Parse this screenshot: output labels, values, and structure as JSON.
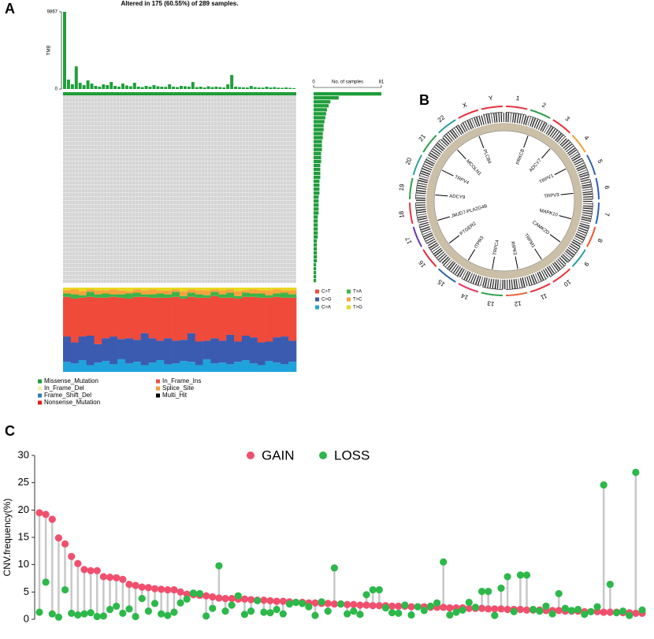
{
  "panel_labels": [
    "A",
    "B",
    "C"
  ],
  "oncoplot": {
    "title": "Altered in 175 (60.55%) of 289 samples.",
    "tmb_label": "TMB",
    "tmb_ylim": [
      0,
      9867
    ],
    "tmb_yticks": [
      0,
      9867
    ],
    "tmb_color": "#1f9e3a",
    "tmb": [
      9867,
      1200,
      600,
      2900,
      800,
      500,
      1100,
      700,
      400,
      300,
      600,
      500,
      900,
      400,
      300,
      700,
      450,
      350,
      800,
      300,
      250,
      400,
      300,
      500,
      350,
      300,
      280,
      600,
      300,
      250,
      400,
      350,
      300,
      900,
      250,
      300,
      200,
      350,
      250,
      300,
      250,
      200,
      600,
      1800,
      300,
      250,
      220,
      200,
      400,
      250,
      200,
      180,
      300,
      200,
      250,
      180,
      150,
      200,
      150,
      120
    ],
    "count_label": "No. of samples",
    "count_xlim": [
      0,
      81
    ],
    "count_xticks": [
      0,
      81
    ],
    "count_color": "#1f9e3a",
    "gene_counts": [
      81,
      30,
      20,
      18,
      16,
      15,
      14,
      13,
      12,
      12,
      11,
      11,
      10,
      10,
      10,
      9,
      9,
      9,
      8,
      8,
      8,
      8,
      7,
      7,
      7,
      7,
      6,
      6,
      6,
      6,
      6,
      5,
      5,
      5,
      5,
      5,
      5,
      4,
      4,
      4,
      4,
      4,
      4,
      3,
      3,
      3,
      3,
      3
    ],
    "variant_legend": [
      {
        "name": "Missense_Mutation",
        "color": "#1f9e3a"
      },
      {
        "name": "In_Frame_Ins",
        "color": "#e8524a"
      },
      {
        "name": "In_Frame_Del",
        "color": "#f3efb0"
      },
      {
        "name": "Splice_Site",
        "color": "#f39c34"
      },
      {
        "name": "Frame_Shift_Del",
        "color": "#2f7bbf"
      },
      {
        "name": "Multi_Hit",
        "color": "#000000"
      },
      {
        "name": "Nonsense_Mutation",
        "color": "#e31a1c"
      }
    ],
    "titv_ylim": [
      0,
      100
    ],
    "titv": [
      {
        "name": "C>T",
        "color": "#f04a3a",
        "values": [
          47,
          52,
          46,
          46,
          55,
          48,
          47,
          49,
          47,
          51,
          43,
          48,
          51,
          48,
          52,
          49,
          43,
          52,
          51,
          50,
          51,
          44,
          51,
          46,
          48,
          53,
          52,
          48,
          46,
          51
        ]
      },
      {
        "name": "C>G",
        "color": "#3a5bb0",
        "values": [
          30,
          25,
          28,
          35,
          22,
          27,
          33,
          24,
          30,
          26,
          38,
          29,
          23,
          31,
          27,
          25,
          34,
          28,
          22,
          30,
          26,
          35,
          24,
          29,
          31,
          27,
          23,
          30,
          33,
          25
        ]
      },
      {
        "name": "C>A",
        "color": "#1fa3dc",
        "values": [
          12,
          10,
          14,
          8,
          11,
          13,
          9,
          15,
          10,
          12,
          8,
          11,
          14,
          9,
          10,
          13,
          12,
          8,
          15,
          10,
          11,
          9,
          12,
          14,
          10,
          8,
          13,
          11,
          9,
          12
        ]
      },
      {
        "name": "T>A",
        "color": "#3cb44a",
        "values": [
          4,
          5,
          3,
          6,
          4,
          5,
          3,
          4,
          6,
          5,
          3,
          4,
          5,
          4,
          6,
          3,
          5,
          4,
          3,
          5,
          4,
          6,
          3,
          5,
          4,
          5,
          3,
          4,
          6,
          4
        ]
      },
      {
        "name": "T>C",
        "color": "#f7a33a",
        "values": [
          4,
          6,
          5,
          3,
          5,
          4,
          6,
          5,
          3,
          4,
          5,
          6,
          4,
          5,
          3,
          6,
          4,
          5,
          6,
          3,
          5,
          4,
          6,
          3,
          5,
          4,
          6,
          5,
          3,
          5
        ]
      },
      {
        "name": "T>G",
        "color": "#e8d81e",
        "values": [
          3,
          2,
          4,
          2,
          3,
          3,
          2,
          3,
          4,
          2,
          3,
          2,
          3,
          3,
          2,
          4,
          2,
          3,
          3,
          2,
          3,
          2,
          4,
          3,
          2,
          3,
          3,
          2,
          3,
          3
        ]
      }
    ]
  },
  "circos": {
    "chromosomes": [
      "1",
      "2",
      "3",
      "4",
      "5",
      "6",
      "7",
      "8",
      "9",
      "10",
      "11",
      "12",
      "13",
      "14",
      "15",
      "16",
      "17",
      "18",
      "19",
      "20",
      "21",
      "22",
      "X",
      "Y"
    ],
    "genes": [
      "PRKCB",
      "ADCY7",
      "TRPV1",
      "TRPV3",
      "MAPK10",
      "CAMK2D",
      "TRPM1",
      "RIPK3",
      "TRPC4",
      "ITPR3",
      "PTGER2",
      "JMJD7-PLA2G4B",
      "ADCY9",
      "TRPV4",
      "MCOLN1",
      "PLCB4"
    ]
  },
  "chart_data": {
    "type": "lollipop",
    "ylabel": "CNV.frequency(%)",
    "ylim": [
      0,
      30
    ],
    "yticks": [
      0,
      5,
      10,
      15,
      20,
      25,
      30
    ],
    "categories": [
      null,
      null,
      null,
      null,
      null,
      null,
      null,
      null,
      null,
      null,
      null,
      null,
      null,
      null,
      null,
      null,
      null,
      null,
      null,
      null,
      null,
      null,
      null,
      null,
      null,
      null,
      null,
      null,
      null,
      null,
      null,
      null,
      null,
      null,
      null,
      null,
      null,
      null,
      null,
      null,
      null,
      null,
      null,
      null,
      null,
      null,
      null,
      null,
      null,
      null,
      null,
      null,
      null,
      null,
      null,
      null,
      null,
      null,
      null,
      null,
      null,
      null,
      null,
      null,
      null,
      null,
      null,
      null,
      null,
      null,
      null,
      null,
      null,
      null,
      null,
      null,
      null,
      null,
      null,
      null,
      null,
      null,
      null,
      null,
      null,
      null,
      null,
      null,
      null,
      null,
      null,
      null,
      null,
      null,
      null
    ],
    "series": [
      {
        "name": "GAIN",
        "color": "#f0506e",
        "values": [
          19.5,
          19.2,
          18.3,
          14.9,
          13.8,
          11.5,
          10.2,
          9.1,
          8.9,
          8.9,
          7.8,
          7.7,
          7.6,
          7.3,
          6.4,
          6.2,
          5.9,
          5.8,
          5.6,
          5.5,
          5.4,
          5.4,
          5.0,
          4.6,
          4.5,
          4.4,
          4.3,
          4.1,
          3.9,
          3.8,
          3.8,
          3.7,
          3.7,
          3.6,
          3.5,
          3.5,
          3.4,
          3.3,
          3.3,
          3.2,
          3.1,
          3.1,
          3.0,
          3.0,
          2.9,
          2.9,
          2.8,
          2.8,
          2.7,
          2.7,
          2.6,
          2.6,
          2.5,
          2.5,
          2.5,
          2.4,
          2.4,
          2.4,
          2.3,
          2.3,
          2.3,
          2.2,
          2.2,
          2.2,
          2.1,
          2.1,
          2.1,
          2.0,
          2.0,
          2.0,
          1.9,
          1.9,
          1.9,
          1.8,
          1.8,
          1.8,
          1.7,
          1.7,
          1.7,
          1.6,
          1.6,
          1.6,
          1.5,
          1.5,
          1.5,
          1.4,
          1.4,
          1.4,
          1.3,
          1.3,
          1.3,
          1.2,
          1.2,
          1.1,
          1.1
        ]
      },
      {
        "name": "LOSS",
        "color": "#2db84a",
        "values": [
          1.3,
          6.8,
          1.0,
          0.4,
          5.4,
          1.1,
          0.8,
          1.0,
          1.2,
          0.5,
          0.6,
          1.8,
          2.4,
          1.1,
          1.9,
          0.5,
          3.8,
          1.5,
          2.9,
          1.0,
          0.7,
          1.3,
          3.0,
          3.7,
          4.8,
          4.7,
          0.6,
          2.0,
          9.8,
          1.5,
          2.6,
          4.3,
          0.9,
          1.5,
          3.4,
          1.3,
          1.2,
          1.8,
          1.0,
          2.8,
          3.1,
          2.9,
          2.3,
          0.7,
          3.2,
          1.5,
          9.4,
          2.8,
          1.0,
          1.5,
          0.9,
          4.5,
          5.4,
          5.4,
          2.1,
          1.2,
          1.1,
          2.6,
          0.8,
          2.3,
          1.6,
          2.4,
          3.0,
          10.5,
          0.8,
          1.3,
          1.7,
          3.1,
          2.2,
          5.1,
          5.1,
          0.7,
          5.7,
          7.8,
          1.4,
          8.1,
          8.1,
          1.8,
          1.5,
          2.4,
          1.0,
          4.7,
          2.0,
          1.6,
          1.8,
          0.9,
          1.4,
          2.3,
          24.6,
          6.4,
          1.2,
          1.5,
          0.7,
          26.9,
          1.7
        ]
      }
    ]
  }
}
